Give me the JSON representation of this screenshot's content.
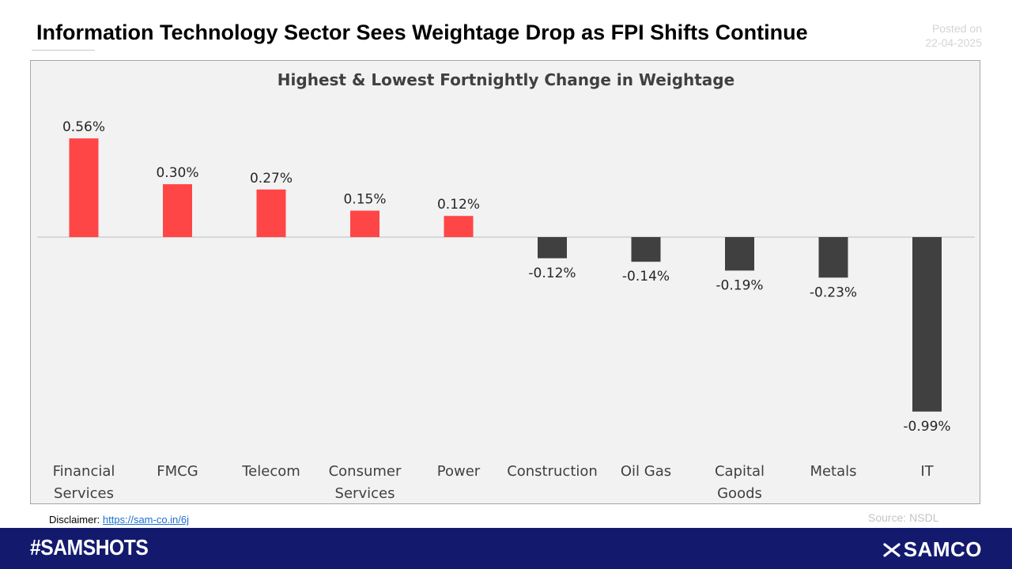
{
  "header": {
    "title": "Information Technology Sector Sees Weightage Drop as FPI Shifts Continue",
    "posted_label": "Posted on",
    "posted_date": "22-04-2025"
  },
  "chart_data": {
    "type": "bar",
    "title": "Highest & Lowest Fortnightly Change in Weightage",
    "categories": [
      [
        "Financial",
        "Services"
      ],
      [
        "FMCG"
      ],
      [
        "Telecom"
      ],
      [
        "Consumer",
        "Services"
      ],
      [
        "Power"
      ],
      [
        "Construction"
      ],
      [
        "Oil Gas"
      ],
      [
        "Capital",
        "Goods"
      ],
      [
        "Metals"
      ],
      [
        "IT"
      ]
    ],
    "values": [
      0.56,
      0.3,
      0.27,
      0.15,
      0.12,
      -0.12,
      -0.14,
      -0.19,
      -0.23,
      -0.99
    ],
    "data_labels": [
      "0.56%",
      "0.30%",
      "0.27%",
      "0.15%",
      "0.12%",
      "-0.12%",
      "-0.14%",
      "-0.19%",
      "-0.23%",
      "-0.99%"
    ],
    "unit": "%",
    "ylim": [
      -0.99,
      0.56
    ],
    "xlabel": "",
    "ylabel": "",
    "colors": {
      "positive": "#ff4646",
      "negative": "#404040"
    }
  },
  "footer": {
    "disclaimer_label": "Disclaimer:",
    "disclaimer_link": "https://sam-co.in/6j",
    "source": "Source: NSDL",
    "hashtag": "#SAMSHOTS",
    "brand": "SAMCO"
  },
  "colors": {
    "footer_bg": "#131a6e",
    "chart_bg": "#f2f2f2"
  }
}
